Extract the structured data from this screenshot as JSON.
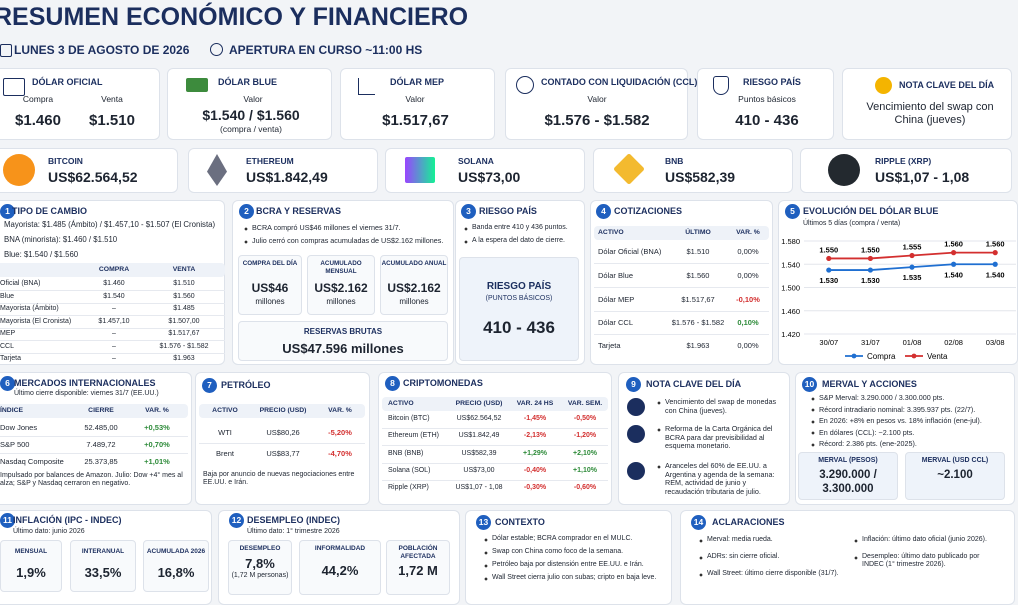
{
  "header": {
    "title": "RESUMEN ECONÓMICO Y FINANCIERO",
    "date": "LUNES 3 DE AGOSTO DE 2026",
    "opening": "APERTURA EN CURSO ~11:00 HS"
  },
  "cards": {
    "oficial": {
      "label": "DÓLAR OFICIAL",
      "buy_label": "Compra",
      "sell_label": "Venta",
      "buy": "$1.460",
      "sell": "$1.510"
    },
    "blue": {
      "label": "DÓLAR BLUE",
      "sub": "Valor",
      "value": "$1.540 / $1.560",
      "note": "(compra / venta)"
    },
    "mep": {
      "label": "DÓLAR MEP",
      "sub": "Valor",
      "value": "$1.517,67"
    },
    "ccl": {
      "label": "CONTADO CON LIQUIDACIÓN (CCL)",
      "sub": "Valor",
      "value": "$1.576 - $1.582"
    },
    "riesgo": {
      "label": "RIESGO PAÍS",
      "sub": "Puntos básicos",
      "value": "410 - 436"
    },
    "nota": {
      "label": "NOTA CLAVE DEL DÍA",
      "text": "Vencimiento del swap con China (jueves)"
    }
  },
  "crypto": [
    {
      "name": "BITCOIN",
      "price": "US$62.564,52"
    },
    {
      "name": "ETHEREUM",
      "price": "US$1.842,49"
    },
    {
      "name": "SOLANA",
      "price": "US$73,00"
    },
    {
      "name": "BNB",
      "price": "US$582,39"
    },
    {
      "name": "RIPPLE (XRP)",
      "price": "US$1,07 - 1,08"
    }
  ],
  "tipo_cambio": {
    "num": 1,
    "title": "TIPO DE CAMBIO",
    "lines": [
      "Mayorista: $1.485 (Ámbito)  /  $1.457,10 - $1.507 (El Cronista)",
      "BNA (minorista): $1.460  /  $1.510",
      "Blue: $1.540 / $1.560"
    ],
    "table": {
      "headers": [
        "COMPRA",
        "VENTA"
      ],
      "rows": [
        [
          "Oficial (BNA)",
          "$1.460",
          "$1.510"
        ],
        [
          "Blue",
          "$1.540",
          "$1.560"
        ],
        [
          "Mayorista (Ámbito)",
          "–",
          "$1.485"
        ],
        [
          "Mayorista (El Cronista)",
          "$1.457,10",
          "$1.507,00"
        ],
        [
          "MEP",
          "–",
          "$1.517,67"
        ],
        [
          "CCL",
          "–",
          "$1.576 - $1.582"
        ],
        [
          "Tarjeta",
          "–",
          "$1.963"
        ]
      ]
    }
  },
  "bcra": {
    "num": 2,
    "title": "BCRA Y RESERVAS",
    "bullets": [
      "BCRA compró US$46 millones el viernes 31/7.",
      "Julio cerró con compras acumuladas de US$2.162 millones."
    ],
    "boxes": [
      {
        "label": "COMPRA DEL DÍA",
        "value": "US$46",
        "unit": "millones"
      },
      {
        "label": "ACUMULADO MENSUAL",
        "value": "US$2.162",
        "unit": "millones"
      },
      {
        "label": "ACUMULADO ANUAL",
        "value": "US$2.162",
        "unit": "millones"
      }
    ],
    "reserves": {
      "label": "RESERVAS BRUTAS",
      "value": "US$47.596 millones"
    }
  },
  "riesgo_pais": {
    "num": 3,
    "title": "RIESGO PAÍS",
    "bullets": [
      "Banda entre 410 y 436 puntos.",
      "A la espera del dato de cierre."
    ],
    "box": {
      "title": "RIESGO PAÍS",
      "sub": "(PUNTOS BÁSICOS)",
      "value": "410 - 436"
    }
  },
  "cotizaciones": {
    "num": 4,
    "title": "COTIZACIONES",
    "table": {
      "headers": [
        "ACTIVO",
        "ÚLTIMO",
        "VAR. %"
      ],
      "rows": [
        [
          "Dólar Oficial (BNA)",
          "$1.510",
          "0,00%"
        ],
        [
          "Dólar Blue",
          "$1.560",
          "0,00%"
        ],
        [
          "Dólar MEP",
          "$1.517,67",
          "-0,10%"
        ],
        [
          "Dólar CCL",
          "$1.576 - $1.582",
          "0,10%"
        ],
        [
          "Tarjeta",
          "$1.963",
          "0,00%"
        ]
      ]
    }
  },
  "chart_data": {
    "type": "line",
    "number": 5,
    "title": "EVOLUCIÓN DEL DÓLAR BLUE",
    "subtitle": "Últimos 5 días (compra / venta)",
    "categories": [
      "30/07",
      "31/07",
      "01/08",
      "02/08",
      "03/08"
    ],
    "series": [
      {
        "name": "Compra",
        "color": "#1f6fd1",
        "values": [
          1530,
          1530,
          1535,
          1540,
          1540
        ],
        "value_labels": [
          "1.530",
          "1.530",
          "1.535",
          "1.540",
          "1.540"
        ]
      },
      {
        "name": "Venta",
        "color": "#d32f2f",
        "values": [
          1550,
          1550,
          1555,
          1560,
          1560
        ],
        "value_labels": [
          "1.550",
          "1.550",
          "1.555",
          "1.560",
          "1.560"
        ]
      }
    ],
    "ylim": [
      1420,
      1580
    ],
    "yticks": [
      {
        "value": 1420,
        "label": "1.420"
      },
      {
        "value": 1460,
        "label": "1.460"
      },
      {
        "value": 1500,
        "label": "1.500"
      },
      {
        "value": 1540,
        "label": "1.540"
      },
      {
        "value": 1580,
        "label": "1.580"
      }
    ],
    "grid": true,
    "legend": "bottom"
  },
  "mercados": {
    "num": 6,
    "title": "MERCADOS INTERNACIONALES",
    "subtitle": "Último cierre disponible: viernes 31/7 (EE.UU.)",
    "table": {
      "headers": [
        "ÍNDICE",
        "CIERRE",
        "VAR. %"
      ],
      "rows": [
        [
          "Dow Jones",
          "52.485,00",
          "+0,53%"
        ],
        [
          "S&P 500",
          "7.489,72",
          "+0,70%"
        ],
        [
          "Nasdaq Composite",
          "25.373,85",
          "+1,01%"
        ]
      ]
    },
    "note": "Impulsado por balances de Amazon. Julio: Dow +4° mes al alza; S&P y Nasdaq cerraron en negativo."
  },
  "petroleo": {
    "num": 7,
    "title": "PETRÓLEO",
    "table": {
      "headers": [
        "ACTIVO",
        "PRECIO (USD)",
        "VAR. %"
      ],
      "rows": [
        [
          "WTI",
          "US$80,26",
          "-5,20%"
        ],
        [
          "Brent",
          "US$83,77",
          "-4,70%"
        ]
      ]
    },
    "note": "Baja por anuncio de nuevas negociaciones entre EE.UU. e Irán."
  },
  "cripto": {
    "num": 8,
    "title": "CRIPTOMONEDAS",
    "table": {
      "headers": [
        "ACTIVO",
        "PRECIO (USD)",
        "VAR. 24 HS",
        "VAR. SEM."
      ],
      "rows": [
        [
          "Bitcoin (BTC)",
          "US$62.564,52",
          "-1,45%",
          "-0,50%"
        ],
        [
          "Ethereum (ETH)",
          "US$1.842,49",
          "-2,13%",
          "-1,20%"
        ],
        [
          "BNB (BNB)",
          "US$582,39",
          "+1,29%",
          "+2,10%"
        ],
        [
          "Solana (SOL)",
          "US$73,00",
          "-0,40%",
          "+1,10%"
        ],
        [
          "Ripple (XRP)",
          "US$1,07 - 1,08",
          "-0,30%",
          "-0,60%"
        ]
      ]
    }
  },
  "nota_clave": {
    "num": 9,
    "title": "NOTA CLAVE DEL DÍA",
    "items": [
      "Vencimiento del swap de monedas con China (jueves).",
      "Reforma de la Carta Orgánica del BCRA para dar previsibilidad al esquema monetario.",
      "Aranceles del 60% de EE.UU. a Argentina y agenda de la semana: REM, actividad de junio y recaudación tributaria de julio."
    ]
  },
  "merval": {
    "num": 10,
    "title": "MERVAL Y ACCIONES",
    "bullets": [
      "S&P Merval: 3.290.000 / 3.300.000 pts.",
      "Récord intradiario nominal: 3.395.937 pts. (22/7).",
      "En 2026: +8% en pesos vs. 18% inflación (ene-jul).",
      "En dólares (CCL): ~2.100 pts.",
      "Récord: 2.386 pts. (ene-2025)."
    ],
    "boxes": [
      {
        "label": "MERVAL (PESOS)",
        "value": "3.290.000 / 3.300.000"
      },
      {
        "label": "MERVAL (USD CCL)",
        "value": "~2.100"
      }
    ]
  },
  "inflacion": {
    "num": 11,
    "title": "INFLACIÓN (IPC - INDEC)",
    "subtitle": "Último dato: junio 2026",
    "boxes": [
      {
        "label": "MENSUAL",
        "value": "1,9%"
      },
      {
        "label": "INTERANUAL",
        "value": "33,5%"
      },
      {
        "label": "ACUMULADA 2026",
        "value": "16,8%"
      }
    ]
  },
  "desempleo": {
    "num": 12,
    "title": "DESEMPLEO (INDEC)",
    "subtitle": "Último dato: 1° trimestre 2026",
    "boxes": [
      {
        "label": "DESEMPLEO",
        "value": "7,8%",
        "note": "(1,72 M personas)"
      },
      {
        "label": "INFORMALIDAD",
        "value": "44,2%"
      },
      {
        "label": "POBLACIÓN AFECTADA",
        "value": "1,72 M"
      }
    ]
  },
  "contexto": {
    "num": 13,
    "title": "CONTEXTO",
    "bullets": [
      "Dólar estable; BCRA comprador en el MULC.",
      "Swap con China como foco de la semana.",
      "Petróleo baja por distensión entre EE.UU. e Irán.",
      "Wall Street cierra julio con subas; cripto en baja leve."
    ]
  },
  "aclaraciones": {
    "num": 14,
    "title": "ACLARACIONES",
    "left": [
      "Merval: media rueda.",
      "ADRs: sin cierre oficial.",
      "Wall Street: último cierre disponible (31/7)."
    ],
    "right": [
      "Inflación: último dato oficial (junio 2026).",
      "Desempleo: último dato publicado por INDEC (1° trimestre 2026)."
    ]
  }
}
